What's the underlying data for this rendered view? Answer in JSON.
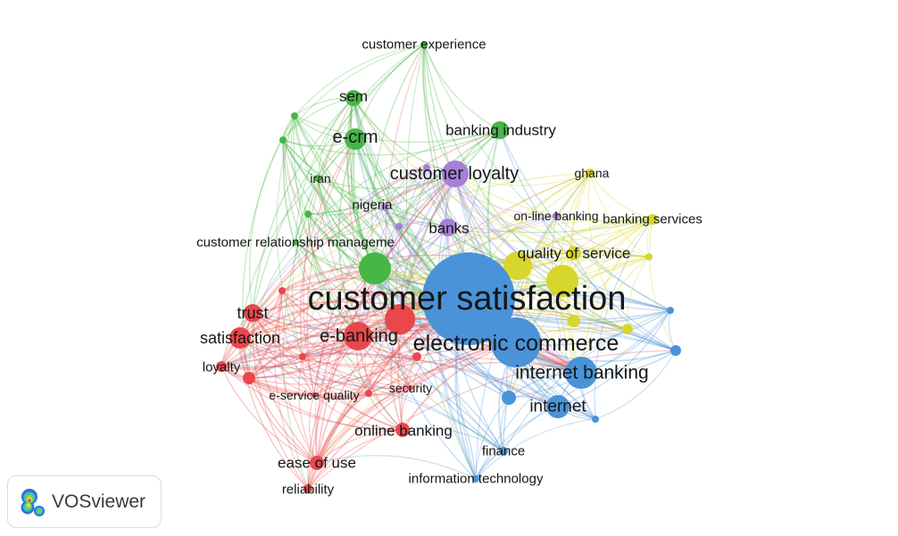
{
  "colors": {
    "red": "#e8474c",
    "green": "#47b647",
    "blue": "#4a93d8",
    "yellow": "#d6d62c",
    "purple": "#a67fd7"
  },
  "network": {
    "green": [
      "customer experience",
      "sem",
      "e-crm",
      "iran",
      "banking industry",
      "customer relationship manageme"
    ],
    "purple": [
      "customer loyalty",
      "nigeria",
      "banks",
      "on-line banking"
    ],
    "yellow": [
      "ghana",
      "banking services",
      "quality of service"
    ],
    "blue": [
      "customer satisfaction",
      "electronic commerce",
      "internet banking",
      "internet",
      "finance",
      "information technology"
    ],
    "red": [
      "trust",
      "satisfaction",
      "loyalty",
      "e-banking",
      "e-service quality",
      "security",
      "online banking",
      "ease of use",
      "reliability"
    ]
  },
  "logo": {
    "text": "VOSviewer",
    "icon": "vosviewer-density-icon"
  }
}
